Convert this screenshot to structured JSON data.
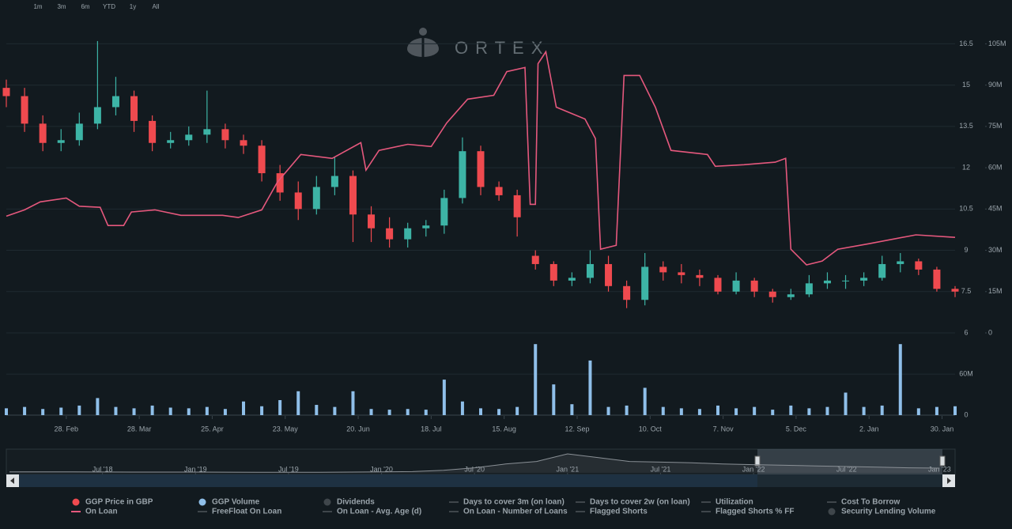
{
  "range_buttons": [
    "1m",
    "3m",
    "6m",
    "YTD",
    "1y",
    "All"
  ],
  "watermark": "ORTEX",
  "legend": {
    "inactive": [
      "Dividends",
      "Days to cover 3m (on loan)",
      "Days to cover 2w (on loan)",
      "Utilization",
      "Cost To Borrow",
      "FreeFloat On Loan",
      "On Loan - Avg. Age (d)",
      "On Loan - Number of Loans",
      "Flagged Shorts",
      "Flagged Shorts % FF",
      "Security Lending Volume"
    ]
  },
  "chart_data": [
    {
      "type": "candlestick",
      "xlim": [
        0,
        364
      ],
      "ylim": [
        6,
        17
      ],
      "yticks": [
        6,
        7.5,
        9,
        10.5,
        12,
        13.5,
        15,
        16.5
      ],
      "y2lim": [
        0,
        110
      ],
      "y2ticks": [
        0,
        {
          "value": 15,
          "label": "15M"
        },
        {
          "value": 30,
          "label": "30M"
        },
        {
          "value": 45,
          "label": "45M"
        },
        {
          "value": 60,
          "label": "60M"
        },
        {
          "value": 75,
          "label": "75M"
        },
        {
          "value": 90,
          "label": "90M"
        },
        {
          "value": 105,
          "label": "105M"
        }
      ],
      "grid": true,
      "series": [
        {
          "name": "GGP Price in GBP",
          "type": "candlestick",
          "up_color": "#3db4a6",
          "down_color": "#ef4a4f",
          "x": [
            0,
            7,
            14,
            21,
            28,
            35,
            42,
            49,
            56,
            63,
            70,
            77,
            84,
            91,
            98,
            105,
            112,
            119,
            126,
            133,
            140,
            147,
            154,
            161,
            168,
            175,
            182,
            189,
            196,
            203,
            210,
            217,
            224,
            231,
            238,
            245,
            252,
            259,
            266,
            273,
            280,
            287,
            294,
            301,
            308,
            315,
            322,
            329,
            336,
            343,
            350,
            357,
            364
          ],
          "open": [
            14.9,
            14.6,
            13.6,
            12.9,
            13.0,
            13.6,
            14.2,
            14.6,
            13.7,
            12.9,
            13.0,
            13.2,
            13.4,
            13.0,
            12.8,
            11.8,
            11.1,
            10.5,
            11.3,
            11.7,
            10.3,
            9.8,
            9.4,
            9.8,
            9.9,
            10.9,
            12.6,
            11.3,
            11.0,
            8.8,
            8.5,
            7.9,
            8.0,
            8.5,
            7.7,
            7.2,
            8.4,
            8.2,
            8.1,
            8.0,
            7.5,
            7.9,
            7.5,
            7.3,
            7.4,
            7.8,
            7.9,
            7.9,
            8.0,
            8.5,
            8.6,
            8.3,
            7.6
          ],
          "high": [
            15.2,
            14.9,
            13.9,
            13.4,
            14.0,
            16.6,
            15.3,
            14.8,
            13.9,
            13.3,
            13.5,
            14.8,
            13.6,
            13.2,
            13.0,
            12.1,
            11.5,
            11.7,
            12.4,
            11.9,
            10.6,
            10.2,
            10.0,
            10.1,
            11.2,
            13.1,
            12.8,
            11.5,
            11.2,
            9.0,
            8.6,
            8.2,
            9.0,
            8.8,
            7.9,
            8.9,
            8.6,
            8.5,
            8.3,
            8.1,
            8.2,
            8.0,
            7.6,
            7.6,
            8.1,
            8.2,
            8.1,
            8.2,
            8.8,
            8.9,
            8.7,
            8.4,
            7.7
          ],
          "low": [
            14.2,
            13.3,
            12.6,
            12.6,
            12.8,
            13.4,
            13.9,
            13.3,
            12.6,
            12.7,
            12.8,
            12.9,
            12.7,
            12.5,
            11.5,
            10.8,
            10.1,
            10.3,
            11.0,
            9.3,
            9.3,
            9.1,
            9.1,
            9.5,
            9.6,
            10.7,
            11.0,
            10.8,
            9.5,
            8.3,
            7.7,
            7.7,
            7.8,
            7.5,
            6.9,
            7.0,
            7.9,
            7.8,
            7.7,
            7.4,
            7.4,
            7.3,
            7.1,
            7.2,
            7.3,
            7.6,
            7.6,
            7.7,
            7.9,
            8.2,
            8.1,
            7.5,
            7.3
          ],
          "close": [
            14.6,
            13.6,
            12.9,
            13.0,
            13.6,
            14.2,
            14.6,
            13.7,
            12.9,
            13.0,
            13.2,
            13.4,
            13.0,
            12.8,
            11.8,
            11.1,
            10.5,
            11.3,
            11.7,
            10.3,
            9.8,
            9.4,
            9.8,
            9.9,
            10.9,
            12.6,
            11.3,
            11.0,
            10.2,
            8.5,
            7.9,
            8.0,
            8.5,
            7.7,
            7.2,
            8.4,
            8.2,
            8.1,
            8.0,
            7.5,
            7.9,
            7.5,
            7.3,
            7.4,
            7.8,
            7.9,
            7.9,
            8.0,
            8.5,
            8.6,
            8.3,
            7.6,
            7.5
          ]
        },
        {
          "name": "On Loan",
          "type": "line",
          "axis": "y2",
          "color": "#e5587d",
          "x": [
            0,
            7,
            13,
            23,
            28,
            36,
            39,
            45,
            48,
            57,
            67,
            83,
            89,
            98,
            104,
            113,
            125,
            136,
            138,
            143,
            154,
            163,
            169,
            177,
            187,
            192,
            199,
            201,
            203,
            204,
            207,
            211,
            222,
            226,
            228,
            234,
            237,
            243,
            249,
            255,
            269,
            272,
            283,
            295,
            299,
            301,
            307,
            313,
            319,
            331,
            349,
            364
          ],
          "values": [
            42.4,
            44.7,
            47.6,
            49.0,
            46.0,
            45.6,
            39.0,
            39.0,
            43.9,
            44.7,
            42.7,
            42.7,
            41.9,
            44.7,
            54.8,
            64.8,
            63.4,
            69.1,
            59.1,
            66.3,
            68.5,
            67.7,
            76.3,
            84.9,
            86.3,
            94.9,
            96.4,
            46.7,
            46.7,
            97.8,
            102.1,
            82.0,
            77.7,
            70.6,
            30.4,
            31.8,
            93.5,
            93.5,
            82.0,
            66.3,
            64.8,
            60.5,
            61.1,
            62.0,
            63.4,
            30.4,
            24.7,
            26.1,
            30.4,
            32.4,
            35.6,
            34.7
          ]
        }
      ]
    },
    {
      "type": "bar",
      "xlim": [
        0,
        364
      ],
      "xticks": [
        {
          "value": 23,
          "label": "28. Feb"
        },
        {
          "value": 51,
          "label": "28. Mar"
        },
        {
          "value": 79,
          "label": "25. Apr"
        },
        {
          "value": 107,
          "label": "23. May"
        },
        {
          "value": 135,
          "label": "20. Jun"
        },
        {
          "value": 163,
          "label": "18. Jul"
        },
        {
          "value": 191,
          "label": "15. Aug"
        },
        {
          "value": 219,
          "label": "12. Sep"
        },
        {
          "value": 247,
          "label": "10. Oct"
        },
        {
          "value": 275,
          "label": "7. Nov"
        },
        {
          "value": 303,
          "label": "5. Dec"
        },
        {
          "value": 331,
          "label": "2. Jan"
        },
        {
          "value": 359,
          "label": "30. Jan"
        }
      ],
      "ylim": [
        0,
        110
      ],
      "yticks": [
        0,
        {
          "value": 60,
          "label": "60M"
        }
      ],
      "series": [
        {
          "name": "GGP Volume",
          "type": "bar",
          "color": "#8fbfe9",
          "x": [
            0,
            7,
            14,
            21,
            28,
            35,
            42,
            49,
            56,
            63,
            70,
            77,
            84,
            91,
            98,
            105,
            112,
            119,
            126,
            133,
            140,
            147,
            154,
            161,
            168,
            175,
            182,
            189,
            196,
            203,
            210,
            217,
            224,
            231,
            238,
            245,
            252,
            259,
            266,
            273,
            280,
            287,
            294,
            301,
            308,
            315,
            322,
            329,
            336,
            343,
            350,
            357,
            364
          ],
          "values": [
            10,
            12,
            9,
            11,
            14,
            25,
            12,
            10,
            14,
            11,
            10,
            12,
            9,
            20,
            13,
            22,
            35,
            15,
            12,
            35,
            9,
            8,
            9,
            8,
            52,
            20,
            10,
            9,
            12,
            104,
            45,
            16,
            80,
            12,
            14,
            40,
            12,
            10,
            9,
            14,
            10,
            12,
            8,
            14,
            10,
            12,
            33,
            12,
            14,
            104,
            10,
            12,
            13
          ]
        }
      ]
    },
    {
      "type": "area",
      "xlim": [
        0,
        61
      ],
      "ylim": [
        0,
        35
      ],
      "xticks": [
        {
          "value": 6,
          "label": "Jul '18"
        },
        {
          "value": 12,
          "label": "Jan '19"
        },
        {
          "value": 18,
          "label": "Jul '19"
        },
        {
          "value": 24,
          "label": "Jan '20"
        },
        {
          "value": 30,
          "label": "Jul '20"
        },
        {
          "value": 36,
          "label": "Jan '21"
        },
        {
          "value": 42,
          "label": "Jul '21"
        },
        {
          "value": 48,
          "label": "Jan '22"
        },
        {
          "value": 54,
          "label": "Jul '22"
        },
        {
          "value": 60,
          "label": "Jan '23"
        }
      ],
      "series": [
        {
          "type": "area",
          "color": "#8a9096",
          "x": [
            0,
            2,
            4,
            6,
            8,
            10,
            12,
            14,
            16,
            18,
            20,
            22,
            24,
            26,
            28,
            30,
            32,
            34,
            36,
            38,
            40,
            42,
            44,
            46,
            48,
            50,
            52,
            54,
            56,
            58,
            60
          ],
          "values": [
            1.5,
            1.5,
            1.5,
            1.4,
            1.3,
            1.2,
            1.2,
            1.1,
            1.0,
            1.0,
            1.0,
            1.2,
            1.5,
            2,
            4,
            8,
            14,
            18,
            30,
            24,
            18,
            17,
            16,
            14,
            13,
            12,
            11,
            10,
            9,
            8,
            7.5
          ]
        }
      ]
    }
  ]
}
